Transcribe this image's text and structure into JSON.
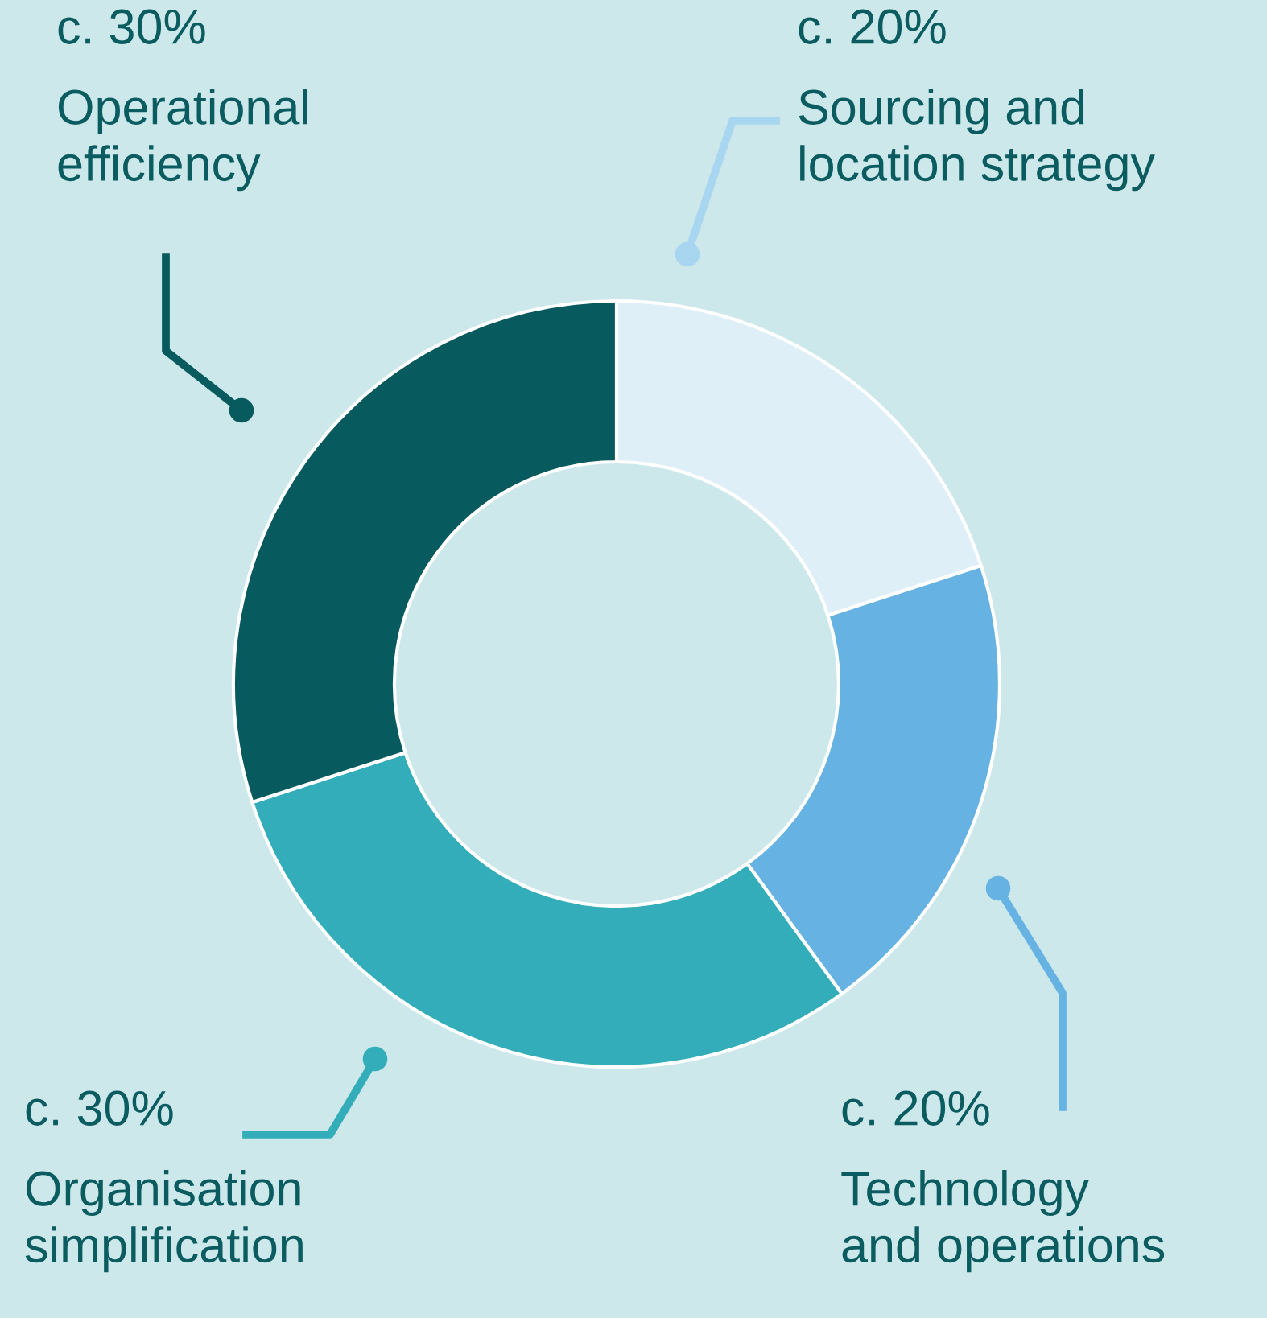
{
  "chart_data": {
    "type": "donut",
    "categories": [
      "Sourcing and\nlocation strategy",
      "Technology\nand operations",
      "Organisation\nsimplification",
      "Operational\nefficiency"
    ],
    "values": [
      20,
      20,
      30,
      30
    ],
    "value_labels": [
      "c. 20%",
      "c. 20%",
      "c. 30%",
      "c. 30%"
    ],
    "colors": [
      "#dfeff8",
      "#66b3e3",
      "#33adb9",
      "#075a5e"
    ]
  }
}
